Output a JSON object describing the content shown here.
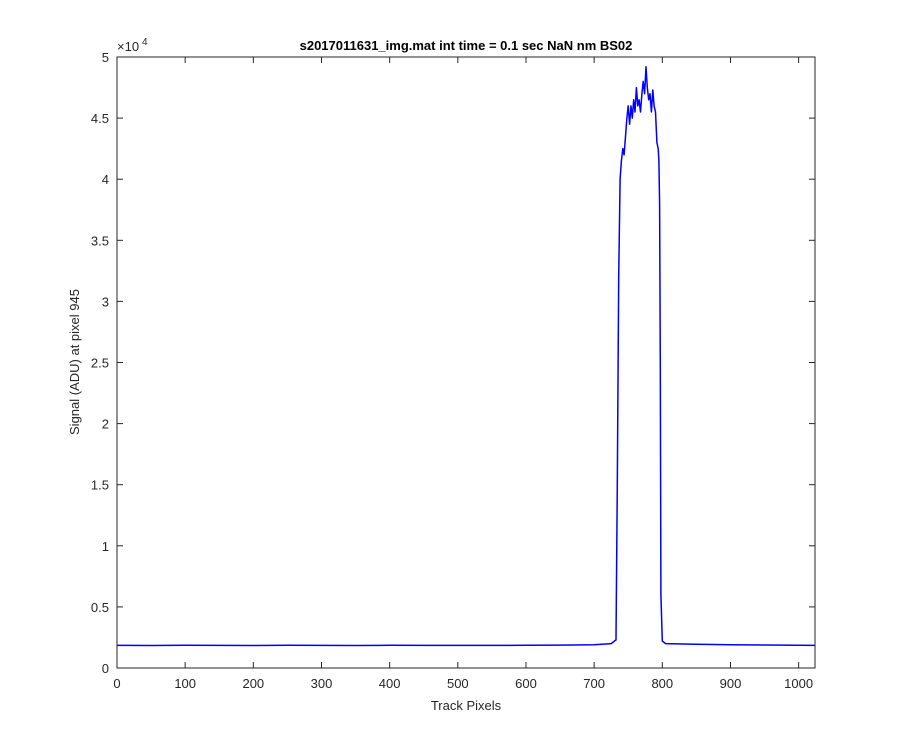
{
  "chart_data": {
    "type": "line",
    "title": "s2017011631_img.mat int time = 0.1 sec  NaN nm BS02",
    "xlabel": "Track Pixels",
    "ylabel": "Signal (ADU) at pixel 945",
    "xlim": [
      0,
      1024
    ],
    "ylim": [
      0,
      50000
    ],
    "x_ticks": [
      0,
      100,
      200,
      300,
      400,
      500,
      600,
      700,
      800,
      900,
      1000
    ],
    "x_tick_labels": [
      "0",
      "100",
      "200",
      "300",
      "400",
      "500",
      "600",
      "700",
      "800",
      "900",
      "1000"
    ],
    "y_ticks": [
      0,
      5000,
      10000,
      15000,
      20000,
      25000,
      30000,
      35000,
      40000,
      45000,
      50000
    ],
    "y_tick_labels": [
      "0",
      "0.5",
      "1",
      "1.5",
      "2",
      "2.5",
      "3",
      "3.5",
      "4",
      "4.5",
      "5"
    ],
    "y_exponent_base": "×10",
    "y_exponent_power": "4",
    "grid": false,
    "series": [
      {
        "color": "#0000ff",
        "x": [
          0,
          50,
          100,
          150,
          200,
          250,
          300,
          350,
          400,
          450,
          500,
          550,
          600,
          650,
          700,
          725,
          732,
          734,
          736,
          738,
          740,
          742,
          744,
          746,
          748,
          750,
          752,
          754,
          756,
          758,
          760,
          762,
          764,
          766,
          768,
          770,
          772,
          774,
          776,
          778,
          780,
          782,
          784,
          786,
          788,
          790,
          792,
          794,
          795,
          796,
          797,
          798,
          800,
          805,
          850,
          900,
          950,
          1000,
          1024
        ],
        "y": [
          1850,
          1840,
          1860,
          1850,
          1845,
          1855,
          1850,
          1845,
          1855,
          1850,
          1850,
          1850,
          1860,
          1870,
          1900,
          2000,
          2300,
          15000,
          32000,
          40000,
          41500,
          42500,
          42000,
          43500,
          45000,
          46000,
          44500,
          46000,
          45000,
          46500,
          45500,
          47500,
          46000,
          46500,
          45500,
          47000,
          48000,
          47000,
          49200,
          47500,
          46500,
          47000,
          45500,
          47300,
          46000,
          45500,
          43000,
          42500,
          41500,
          38000,
          25000,
          6000,
          2200,
          2000,
          1950,
          1900,
          1880,
          1860,
          1850
        ]
      }
    ]
  }
}
